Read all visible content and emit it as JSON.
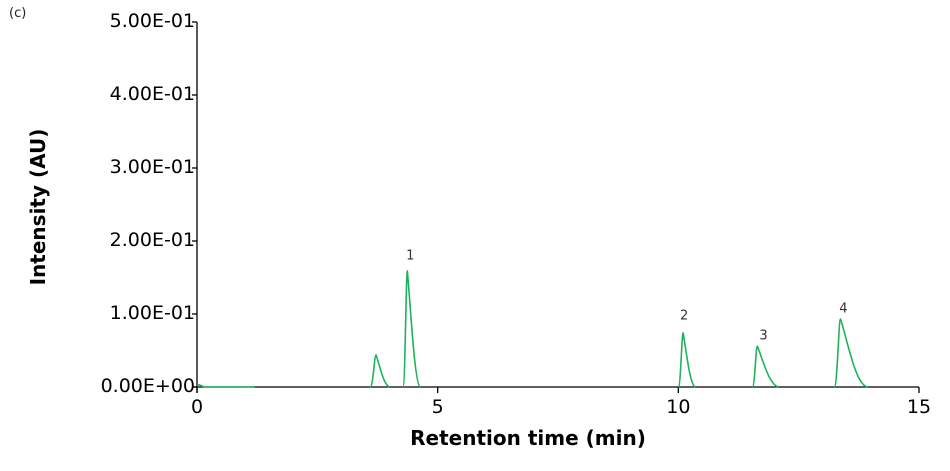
{
  "panel_label": "(c)",
  "chart_data": {
    "type": "line",
    "title": "",
    "xlabel": "Retention time (min)",
    "ylabel": "Intensity (AU)",
    "xlim": [
      0,
      15
    ],
    "ylim": [
      0,
      0.5
    ],
    "x_ticks": [
      0,
      5,
      10,
      15
    ],
    "x_tick_labels": [
      "0",
      "5",
      "10",
      "15"
    ],
    "y_ticks": [
      0,
      0.1,
      0.2,
      0.3,
      0.4,
      0.5
    ],
    "y_tick_labels": [
      "0.00E+00",
      "1.00E-01",
      "2.00E-01",
      "3.00E-01",
      "4.00E-01",
      "5.00E-01"
    ],
    "grid": false,
    "legend": null,
    "line_color": "#1db35a",
    "series": [
      {
        "name": "chromatogram",
        "peaks": [
          {
            "label": "",
            "start": 3.6,
            "apex_time": 3.72,
            "apex_intensity": 0.044,
            "end": 4.0
          },
          {
            "label": "1",
            "start": 4.28,
            "apex_time": 4.37,
            "apex_intensity": 0.159,
            "end": 4.64
          },
          {
            "label": "2",
            "start": 10.0,
            "apex_time": 10.1,
            "apex_intensity": 0.074,
            "end": 10.35
          },
          {
            "label": "3",
            "start": 11.54,
            "apex_time": 11.64,
            "apex_intensity": 0.056,
            "end": 12.08
          },
          {
            "label": "4",
            "start": 13.24,
            "apex_time": 13.37,
            "apex_intensity": 0.093,
            "end": 13.93
          }
        ]
      }
    ],
    "annotations": [
      {
        "text": "1",
        "x": 4.43,
        "y": 0.179
      },
      {
        "text": "2",
        "x": 10.12,
        "y": 0.097
      },
      {
        "text": "3",
        "x": 11.77,
        "y": 0.07
      },
      {
        "text": "4",
        "x": 13.43,
        "y": 0.107
      }
    ]
  }
}
